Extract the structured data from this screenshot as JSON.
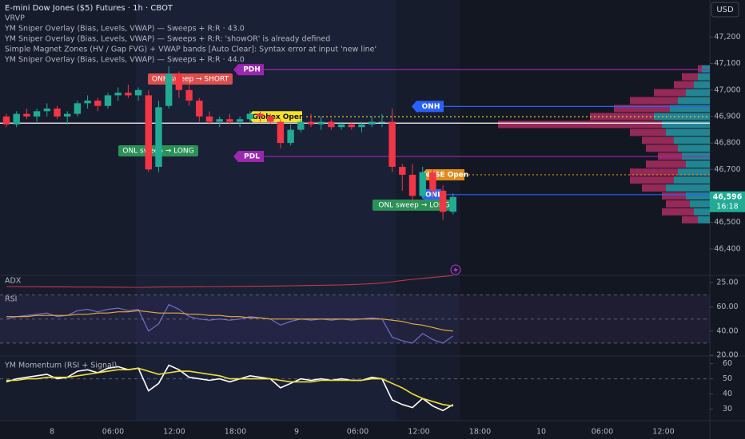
{
  "header": {
    "lines": [
      "E-mini Dow Jones ($5) Futures · 1h · CBOT",
      "VRVP",
      "YM Sniper Overlay (Bias, Levels, VWAP) — Sweeps + R:R · 43.0",
      "YM Sniper Overlay (Bias, Levels, VWAP) — Sweeps + R:R: 'showOR' is already defined",
      "Simple Magnet Zones (HV / Gap FVG) + VWAP bands [Auto Clear]: Syntax error at input 'new line'",
      "YM Sniper Overlay (Bias, Levels, VWAP) — Sweeps + R:R · 44.0"
    ],
    "currency": "USD"
  },
  "chart_data": [
    {
      "type": "candlestick",
      "open": [
        46900,
        46870,
        46910,
        46900,
        46920,
        46930,
        46900,
        46910,
        46950,
        46960,
        46940,
        46980,
        46990,
        46980,
        46980,
        46710,
        46940,
        47060,
        47000,
        46960,
        46900,
        46880,
        46890,
        46880,
        46890,
        46910,
        46900,
        46880,
        46800,
        46850,
        46880,
        46870,
        46880,
        46860,
        46870,
        46860,
        46870,
        46880,
        46880,
        46710,
        46680,
        46600,
        46690,
        46620,
        46540
      ],
      "high": [
        46910,
        46920,
        46930,
        46930,
        46950,
        46940,
        46920,
        46960,
        46980,
        46970,
        46990,
        47010,
        47020,
        47010,
        47000,
        46960,
        47090,
        47070,
        47020,
        46970,
        46920,
        46900,
        46910,
        46900,
        46920,
        46920,
        46910,
        46890,
        46870,
        46890,
        46910,
        46900,
        46890,
        46880,
        46880,
        46880,
        46900,
        46910,
        46930,
        46720,
        46720,
        46710,
        46700,
        46640,
        46610
      ],
      "low": [
        46860,
        46860,
        46890,
        46880,
        46900,
        46890,
        46870,
        46900,
        46930,
        46920,
        46930,
        46960,
        46970,
        46960,
        46690,
        46690,
        46930,
        46970,
        46940,
        46880,
        46870,
        46860,
        46870,
        46860,
        46880,
        46880,
        46870,
        46780,
        46790,
        46840,
        46860,
        46850,
        46850,
        46850,
        46850,
        46840,
        46860,
        46860,
        46690,
        46620,
        46580,
        46590,
        46590,
        46510,
        46530
      ],
      "close": [
        46870,
        46910,
        46900,
        46920,
        46930,
        46900,
        46910,
        46950,
        46960,
        46940,
        46980,
        46990,
        46980,
        47000,
        46700,
        46935,
        47060,
        47000,
        46960,
        46900,
        46880,
        46890,
        46880,
        46890,
        46910,
        46900,
        46880,
        46800,
        46850,
        46880,
        46870,
        46880,
        46860,
        46870,
        46860,
        46870,
        46880,
        46880,
        46710,
        46680,
        46600,
        46690,
        46620,
        46540,
        46596
      ],
      "up_color": "#22ab94",
      "down_color": "#f23645",
      "ylim": [
        46300,
        47340
      ],
      "yticks": [
        {
          "value": 47200,
          "label": "47,200"
        },
        {
          "value": 47100,
          "label": "47,100"
        },
        {
          "value": 47000,
          "label": "47,000"
        },
        {
          "value": 46900,
          "label": "46,900"
        },
        {
          "value": 46800,
          "label": "46,800"
        },
        {
          "value": 46700,
          "label": "46,700"
        },
        {
          "value": 46600,
          "label": "46,600"
        },
        {
          "value": 46500,
          "label": "46,500"
        },
        {
          "value": 46400,
          "label": "46,400"
        }
      ],
      "last_price": {
        "value": 46596,
        "label": "46,596"
      },
      "countdown": "16:18",
      "xtick_labels": [
        "8",
        "06:00",
        "12:00",
        "18:00",
        "9",
        "06:00",
        "12:00",
        "18:00",
        "10",
        "06:00",
        "12:00"
      ],
      "levels": [
        {
          "name": "PDH",
          "value": 47077,
          "color": "#9c27b0",
          "style": "solid"
        },
        {
          "name": "ONH",
          "value": 46938,
          "color": "#2962ff",
          "style": "solid"
        },
        {
          "name": "Globex Open",
          "value": 46899,
          "color": "#f5e12a",
          "style": "dotted"
        },
        {
          "value": 46875,
          "color": "#ffffff",
          "style": "solid"
        },
        {
          "name": "PDL",
          "value": 46749,
          "color": "#9c27b0",
          "style": "solid"
        },
        {
          "name": "NYSE Open",
          "value": 46680,
          "color": "#e08b1a",
          "style": "dotted"
        },
        {
          "name": "ONL",
          "value": 46605,
          "color": "#2962ff",
          "style": "solid"
        }
      ],
      "signals": [
        {
          "label": "ONH sweep → SHORT",
          "color": "#f05350"
        },
        {
          "label": "ONL sweep → LONG",
          "color": "#2e9e5b"
        },
        {
          "label": "ONL sweep → LONG",
          "color": "#2e9e5b"
        }
      ],
      "volume_profile": {
        "prices": [
          47080,
          47050,
          47020,
          46990,
          46960,
          46930,
          46900,
          46870,
          46840,
          46810,
          46780,
          46750,
          46720,
          46690,
          46660,
          46630,
          46600,
          46570,
          46540,
          46510
        ],
        "up": [
          10,
          15,
          20,
          30,
          40,
          50,
          70,
          60,
          55,
          45,
          40,
          35,
          30,
          40,
          45,
          55,
          30,
          25,
          20,
          15
        ],
        "down": [
          5,
          20,
          25,
          40,
          60,
          70,
          80,
          205,
          45,
          40,
          40,
          30,
          50,
          60,
          55,
          30,
          30,
          30,
          40,
          20
        ],
        "up_color": "#2aa9b8",
        "down_color": "#c2306a"
      }
    },
    {
      "type": "line",
      "title": "ADX",
      "ylim": [
        19,
        31
      ],
      "yticks": [
        {
          "value": 25,
          "label": "25.00"
        }
      ],
      "series": [
        {
          "color": "#c0394a",
          "values": [
            22.5,
            22.5,
            22.4,
            22.4,
            22.3,
            22.3,
            22.3,
            22.2,
            22.2,
            22.2,
            22.1,
            22.1,
            22,
            22,
            22.1,
            22.2,
            22.3,
            22.3,
            22.4,
            22.4,
            22.5,
            22.5,
            22.6,
            22.6,
            22.7,
            22.7,
            22.8,
            22.9,
            23,
            23.1,
            23.2,
            23.3,
            23.4,
            23.5,
            23.7,
            24,
            24.3,
            24.7,
            25.5,
            26.3,
            27,
            27.6,
            28.2,
            28.8,
            29.4
          ]
        }
      ]
    },
    {
      "type": "line",
      "title": "RSI",
      "ylim": [
        20,
        73
      ],
      "bands": [
        70,
        50,
        30
      ],
      "yticks": [
        {
          "value": 60,
          "label": "60.00"
        },
        {
          "value": 40,
          "label": "40.00"
        },
        {
          "value": 20,
          "label": "20.00"
        }
      ],
      "series": [
        {
          "color": "#7e6fd8",
          "values": [
            50,
            52,
            53,
            54,
            55,
            52,
            53,
            57,
            58,
            56,
            58,
            59,
            57,
            58,
            40,
            46,
            62,
            58,
            52,
            50,
            49,
            50,
            49,
            50,
            52,
            51,
            50,
            45,
            48,
            50,
            49,
            50,
            49,
            50,
            49,
            50,
            51,
            50,
            35,
            32,
            30,
            38,
            33,
            30,
            36
          ]
        },
        {
          "color": "#e3b23c",
          "values": [
            52,
            52,
            52,
            53,
            53,
            53,
            53,
            54,
            54,
            55,
            55,
            56,
            56,
            57,
            56,
            55,
            55,
            55,
            54,
            54,
            53,
            53,
            52,
            52,
            51,
            51,
            50,
            50,
            50,
            50,
            50,
            50,
            50,
            50,
            50,
            50,
            50,
            50,
            49,
            48,
            46,
            45,
            43,
            41,
            40
          ]
        }
      ]
    },
    {
      "type": "line",
      "title": "YM Momentum (RSI + Signal)",
      "ylim": [
        25,
        64
      ],
      "bands": [
        50
      ],
      "yticks": [
        60,
        50,
        40,
        30
      ],
      "series": [
        {
          "color": "#ffffff",
          "values": [
            48,
            50,
            51,
            52,
            53,
            50,
            51,
            55,
            56,
            54,
            57,
            58,
            56,
            57,
            42,
            47,
            59,
            56,
            51,
            50,
            49,
            50,
            48,
            50,
            52,
            51,
            50,
            44,
            47,
            50,
            49,
            50,
            49,
            50,
            49,
            49,
            51,
            50,
            36,
            33,
            31,
            37,
            32,
            29,
            33
          ]
        },
        {
          "color": "#f2e03a",
          "values": [
            49,
            49,
            50,
            50,
            51,
            51,
            51,
            52,
            53,
            54,
            55,
            56,
            56,
            57,
            55,
            53,
            54,
            55,
            55,
            54,
            53,
            52,
            50,
            50,
            50,
            50,
            50,
            49,
            48,
            48,
            48,
            49,
            49,
            49,
            49,
            49,
            50,
            50,
            47,
            44,
            40,
            37,
            35,
            33,
            32
          ]
        }
      ]
    }
  ]
}
